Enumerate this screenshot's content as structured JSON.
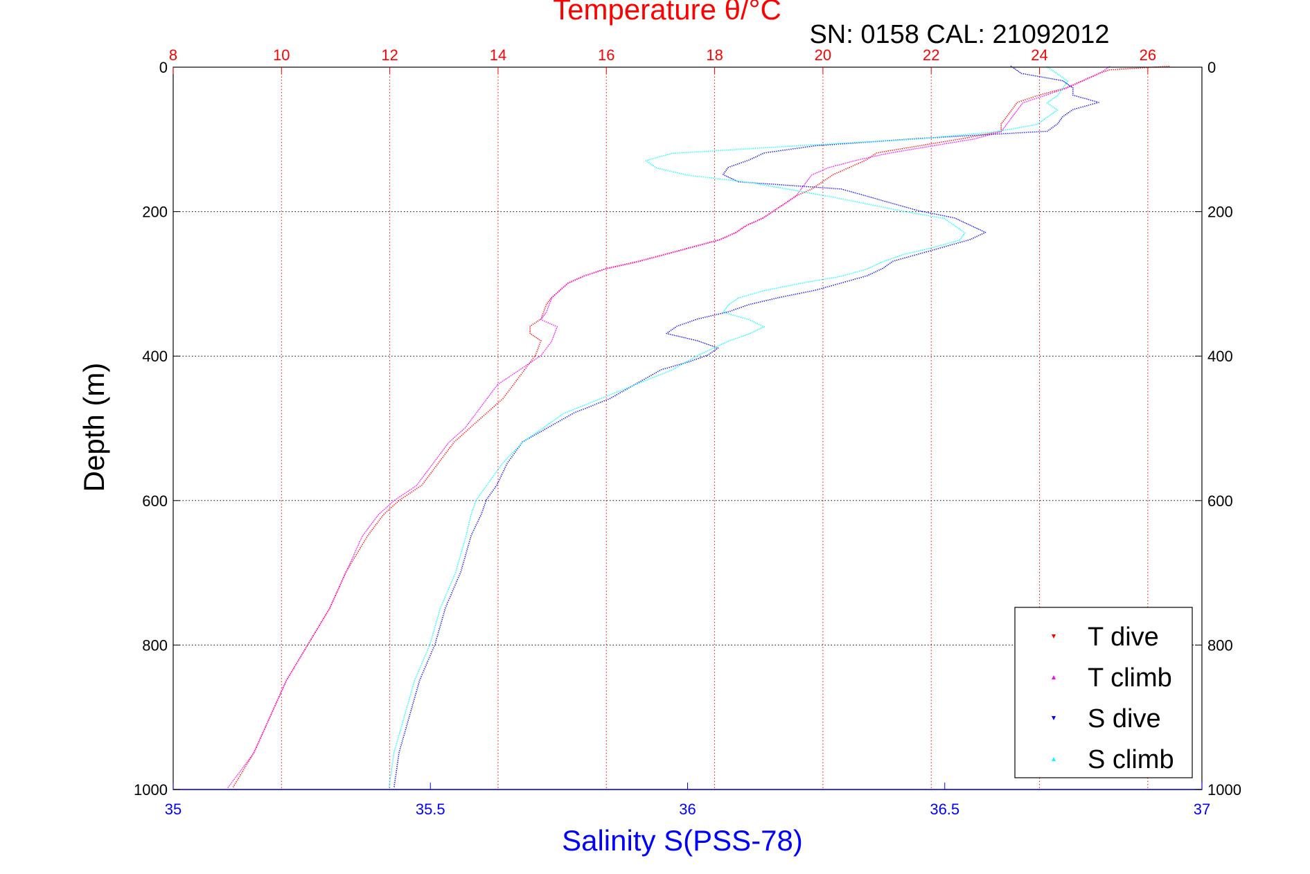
{
  "chart_data": {
    "type": "scatter",
    "title": "Temperature θ/°C",
    "subtitle": "SN: 0158  CAL: 21092012",
    "ylabel": "Depth (m)",
    "xlabel": "Salinity S(PSS-78)",
    "top_axis": {
      "label": "Temperature θ/°C",
      "range": [
        8,
        27
      ],
      "ticks": [
        "8",
        "10",
        "12",
        "14",
        "16",
        "18",
        "20",
        "22",
        "24",
        "26"
      ],
      "color": "#ff0000",
      "grid": true
    },
    "bottom_axis": {
      "label": "Salinity S(PSS-78)",
      "range": [
        35,
        37
      ],
      "ticks": [
        "35",
        "35.5",
        "36",
        "36.5",
        "37"
      ],
      "color": "#0000ff"
    },
    "y_axis": {
      "range": [
        0,
        1000
      ],
      "reversed": true,
      "ticks": [
        "0",
        "200",
        "400",
        "600",
        "800",
        "1000"
      ],
      "grid": true
    },
    "legend": {
      "position": "bottom-right"
    },
    "series": [
      {
        "name": "T dive",
        "axis": "top",
        "color": "#ff0000",
        "marker": "triangle-down",
        "points": [
          [
            26.4,
            0
          ],
          [
            25.3,
            5
          ],
          [
            25.1,
            10
          ],
          [
            24.8,
            20
          ],
          [
            24.5,
            30
          ],
          [
            24.0,
            40
          ],
          [
            23.6,
            50
          ],
          [
            23.5,
            60
          ],
          [
            23.4,
            70
          ],
          [
            23.3,
            80
          ],
          [
            23.3,
            90
          ],
          [
            22.6,
            100
          ],
          [
            21.8,
            110
          ],
          [
            21.0,
            120
          ],
          [
            20.8,
            130
          ],
          [
            20.5,
            140
          ],
          [
            20.2,
            150
          ],
          [
            20.0,
            160
          ],
          [
            19.8,
            170
          ],
          [
            19.5,
            180
          ],
          [
            19.3,
            190
          ],
          [
            19.1,
            200
          ],
          [
            18.9,
            210
          ],
          [
            18.6,
            220
          ],
          [
            18.4,
            230
          ],
          [
            18.1,
            240
          ],
          [
            17.6,
            250
          ],
          [
            17.1,
            260
          ],
          [
            16.6,
            270
          ],
          [
            16.0,
            280
          ],
          [
            15.6,
            290
          ],
          [
            15.3,
            300
          ],
          [
            15.0,
            320
          ],
          [
            14.9,
            330
          ],
          [
            14.8,
            350
          ],
          [
            14.6,
            360
          ],
          [
            14.6,
            370
          ],
          [
            14.8,
            380
          ],
          [
            14.7,
            400
          ],
          [
            14.5,
            420
          ],
          [
            14.3,
            440
          ],
          [
            14.1,
            460
          ],
          [
            13.8,
            480
          ],
          [
            13.5,
            500
          ],
          [
            13.2,
            520
          ],
          [
            12.9,
            550
          ],
          [
            12.6,
            580
          ],
          [
            12.2,
            600
          ],
          [
            11.9,
            620
          ],
          [
            11.6,
            650
          ],
          [
            11.2,
            700
          ],
          [
            10.9,
            750
          ],
          [
            10.5,
            800
          ],
          [
            10.1,
            850
          ],
          [
            9.8,
            900
          ],
          [
            9.5,
            950
          ],
          [
            9.1,
            1000
          ]
        ]
      },
      {
        "name": "T climb",
        "axis": "top",
        "color": "#ff00ff",
        "marker": "triangle-up",
        "points": [
          [
            25.3,
            0
          ],
          [
            25.1,
            10
          ],
          [
            24.8,
            20
          ],
          [
            24.5,
            30
          ],
          [
            24.1,
            40
          ],
          [
            23.7,
            50
          ],
          [
            23.6,
            60
          ],
          [
            23.5,
            70
          ],
          [
            23.4,
            80
          ],
          [
            23.3,
            90
          ],
          [
            22.8,
            100
          ],
          [
            22.0,
            110
          ],
          [
            21.2,
            120
          ],
          [
            20.6,
            130
          ],
          [
            20.1,
            140
          ],
          [
            19.8,
            150
          ],
          [
            19.7,
            160
          ],
          [
            19.6,
            170
          ],
          [
            19.5,
            180
          ],
          [
            19.3,
            190
          ],
          [
            19.1,
            200
          ],
          [
            18.9,
            210
          ],
          [
            18.6,
            220
          ],
          [
            18.4,
            230
          ],
          [
            18.1,
            240
          ],
          [
            17.6,
            250
          ],
          [
            17.1,
            260
          ],
          [
            16.6,
            270
          ],
          [
            16.0,
            280
          ],
          [
            15.6,
            290
          ],
          [
            15.3,
            300
          ],
          [
            15.0,
            320
          ],
          [
            14.9,
            340
          ],
          [
            14.8,
            350
          ],
          [
            15.1,
            360
          ],
          [
            15.0,
            380
          ],
          [
            14.8,
            400
          ],
          [
            14.4,
            420
          ],
          [
            14.0,
            440
          ],
          [
            13.7,
            470
          ],
          [
            13.4,
            500
          ],
          [
            13.1,
            520
          ],
          [
            12.8,
            550
          ],
          [
            12.5,
            580
          ],
          [
            12.1,
            600
          ],
          [
            11.8,
            620
          ],
          [
            11.5,
            650
          ],
          [
            11.2,
            700
          ],
          [
            10.9,
            750
          ],
          [
            10.5,
            800
          ],
          [
            10.1,
            850
          ],
          [
            9.8,
            900
          ],
          [
            9.5,
            950
          ],
          [
            9.0,
            1000
          ]
        ]
      },
      {
        "name": "S dive",
        "axis": "bottom",
        "color": "#0000ff",
        "marker": "triangle-down",
        "points": [
          [
            36.63,
            0
          ],
          [
            36.65,
            10
          ],
          [
            36.73,
            20
          ],
          [
            36.75,
            30
          ],
          [
            36.75,
            40
          ],
          [
            36.8,
            50
          ],
          [
            36.75,
            60
          ],
          [
            36.73,
            70
          ],
          [
            36.72,
            80
          ],
          [
            36.7,
            90
          ],
          [
            36.45,
            100
          ],
          [
            36.25,
            110
          ],
          [
            36.15,
            120
          ],
          [
            36.12,
            130
          ],
          [
            36.08,
            140
          ],
          [
            36.07,
            150
          ],
          [
            36.1,
            160
          ],
          [
            36.3,
            170
          ],
          [
            36.35,
            180
          ],
          [
            36.4,
            190
          ],
          [
            36.45,
            200
          ],
          [
            36.52,
            210
          ],
          [
            36.55,
            220
          ],
          [
            36.58,
            230
          ],
          [
            36.55,
            240
          ],
          [
            36.5,
            250
          ],
          [
            36.45,
            260
          ],
          [
            36.4,
            270
          ],
          [
            36.38,
            280
          ],
          [
            36.35,
            290
          ],
          [
            36.3,
            300
          ],
          [
            36.25,
            310
          ],
          [
            36.18,
            320
          ],
          [
            36.12,
            330
          ],
          [
            36.08,
            340
          ],
          [
            36.02,
            350
          ],
          [
            35.98,
            360
          ],
          [
            35.96,
            370
          ],
          [
            36.02,
            380
          ],
          [
            36.06,
            390
          ],
          [
            36.04,
            400
          ],
          [
            36.0,
            410
          ],
          [
            35.95,
            420
          ],
          [
            35.9,
            440
          ],
          [
            35.85,
            460
          ],
          [
            35.78,
            480
          ],
          [
            35.73,
            500
          ],
          [
            35.68,
            520
          ],
          [
            35.65,
            550
          ],
          [
            35.63,
            580
          ],
          [
            35.61,
            600
          ],
          [
            35.6,
            620
          ],
          [
            35.58,
            650
          ],
          [
            35.56,
            700
          ],
          [
            35.53,
            750
          ],
          [
            35.51,
            800
          ],
          [
            35.48,
            850
          ],
          [
            35.46,
            900
          ],
          [
            35.44,
            950
          ],
          [
            35.43,
            1000
          ]
        ]
      },
      {
        "name": "S climb",
        "axis": "bottom",
        "color": "#00ffff",
        "marker": "triangle-up",
        "points": [
          [
            36.7,
            0
          ],
          [
            36.72,
            10
          ],
          [
            36.74,
            20
          ],
          [
            36.73,
            30
          ],
          [
            36.72,
            40
          ],
          [
            36.7,
            50
          ],
          [
            36.72,
            60
          ],
          [
            36.7,
            70
          ],
          [
            36.68,
            80
          ],
          [
            36.6,
            90
          ],
          [
            36.45,
            100
          ],
          [
            36.2,
            110
          ],
          [
            35.97,
            120
          ],
          [
            35.92,
            130
          ],
          [
            35.94,
            140
          ],
          [
            36.0,
            150
          ],
          [
            36.12,
            160
          ],
          [
            36.2,
            170
          ],
          [
            36.28,
            180
          ],
          [
            36.35,
            190
          ],
          [
            36.42,
            200
          ],
          [
            36.5,
            210
          ],
          [
            36.52,
            220
          ],
          [
            36.54,
            230
          ],
          [
            36.53,
            240
          ],
          [
            36.48,
            250
          ],
          [
            36.42,
            260
          ],
          [
            36.38,
            270
          ],
          [
            36.35,
            280
          ],
          [
            36.3,
            290
          ],
          [
            36.22,
            300
          ],
          [
            36.15,
            310
          ],
          [
            36.1,
            320
          ],
          [
            36.08,
            330
          ],
          [
            36.07,
            340
          ],
          [
            36.12,
            350
          ],
          [
            36.15,
            360
          ],
          [
            36.12,
            370
          ],
          [
            36.08,
            380
          ],
          [
            36.05,
            390
          ],
          [
            36.02,
            400
          ],
          [
            35.97,
            420
          ],
          [
            35.9,
            440
          ],
          [
            35.83,
            460
          ],
          [
            35.76,
            480
          ],
          [
            35.72,
            500
          ],
          [
            35.68,
            520
          ],
          [
            35.64,
            550
          ],
          [
            35.61,
            580
          ],
          [
            35.59,
            600
          ],
          [
            35.58,
            620
          ],
          [
            35.57,
            650
          ],
          [
            35.55,
            700
          ],
          [
            35.52,
            750
          ],
          [
            35.5,
            800
          ],
          [
            35.47,
            850
          ],
          [
            35.45,
            900
          ],
          [
            35.43,
            950
          ],
          [
            35.42,
            1000
          ]
        ]
      }
    ]
  }
}
